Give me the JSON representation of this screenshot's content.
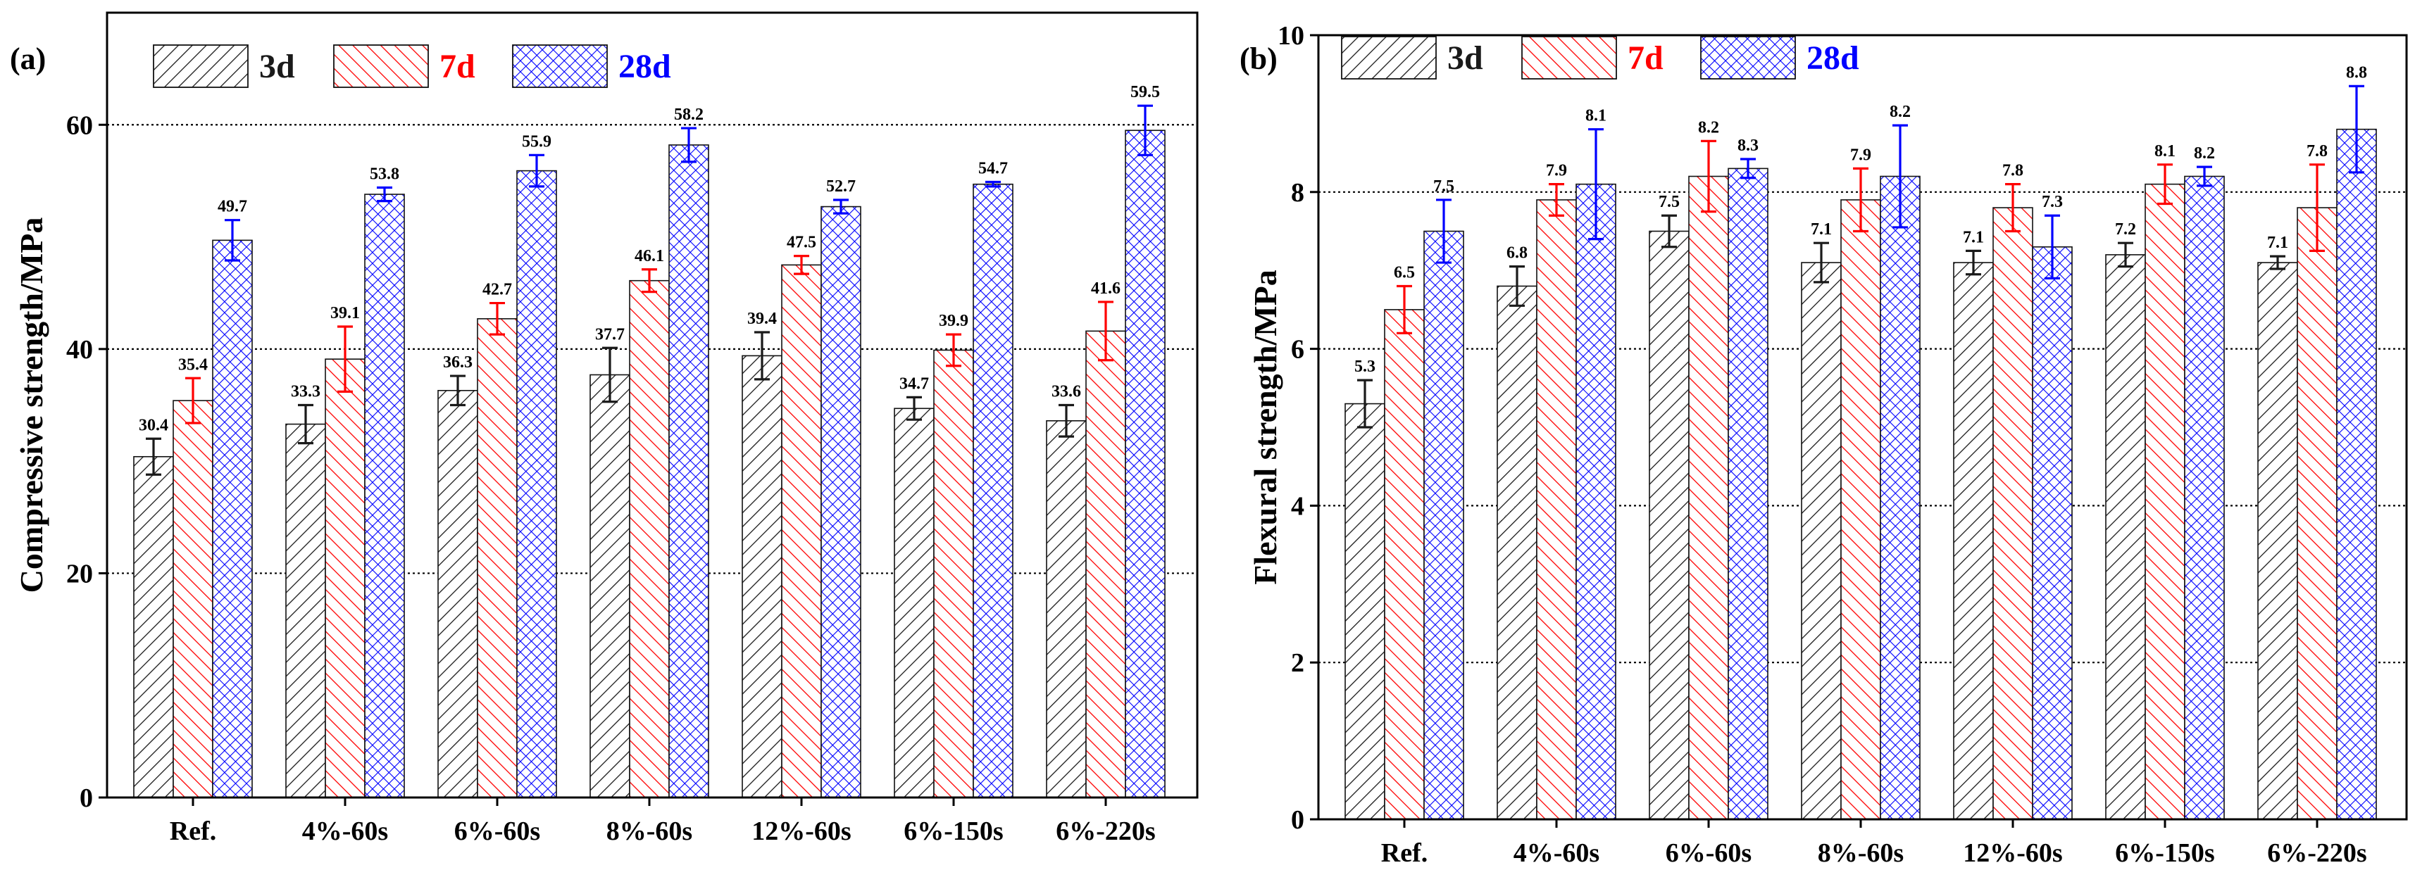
{
  "figure": {
    "legend": {
      "items": [
        {
          "label": "3d",
          "color": "#1a1a1a",
          "pattern": "hatch-black"
        },
        {
          "label": "7d",
          "color": "#ff0000",
          "pattern": "hatch-red"
        },
        {
          "label": "28d",
          "color": "#0000ff",
          "pattern": "cross-blue"
        }
      ]
    }
  },
  "chart_data": [
    {
      "panel_label": "(a)",
      "type": "bar",
      "title": "",
      "xlabel": "",
      "ylabel": "Compressive strength/MPa",
      "ylim": [
        0,
        70
      ],
      "yticks": [
        0,
        20,
        40,
        60
      ],
      "yticks_text": [
        "0",
        "20",
        "40",
        "60"
      ],
      "grid": {
        "dotted_y": [
          20,
          40,
          60
        ]
      },
      "categories": [
        "Ref.",
        "4%-60s",
        "6%-60s",
        "8%-60s",
        "12%-60s",
        "6%-150s",
        "6%-220s"
      ],
      "series": [
        {
          "name": "3d",
          "color": "#1a1a1a",
          "pattern": "hatch-black",
          "values": [
            30.4,
            33.3,
            36.3,
            37.7,
            39.4,
            34.7,
            33.6
          ],
          "labels": [
            "30.4",
            "33.3",
            "36.3",
            "37.7",
            "39.4",
            "34.7",
            "33.6"
          ],
          "errors": [
            1.6,
            1.7,
            1.3,
            2.4,
            2.1,
            1.0,
            1.4
          ]
        },
        {
          "name": "7d",
          "color": "#ff0000",
          "pattern": "hatch-red",
          "values": [
            35.4,
            39.1,
            42.7,
            46.1,
            47.5,
            39.9,
            41.6
          ],
          "labels": [
            "35.4",
            "39.1",
            "42.7",
            "46.1",
            "47.5",
            "39.9",
            "41.6"
          ],
          "errors": [
            2.0,
            2.9,
            1.4,
            1.0,
            0.8,
            1.4,
            2.6
          ]
        },
        {
          "name": "28d",
          "color": "#0000ff",
          "pattern": "cross-blue",
          "values": [
            49.7,
            53.8,
            55.9,
            58.2,
            52.7,
            54.7,
            59.5
          ],
          "labels": [
            "49.7",
            "53.8",
            "55.9",
            "58.2",
            "52.7",
            "54.7",
            "59.5"
          ],
          "errors": [
            1.8,
            0.6,
            1.4,
            1.5,
            0.6,
            0.2,
            2.2
          ]
        }
      ]
    },
    {
      "panel_label": "(b)",
      "type": "bar",
      "title": "",
      "xlabel": "",
      "ylabel": "Flexural strength/MPa",
      "ylim": [
        0,
        10
      ],
      "yticks": [
        0,
        2,
        4,
        6,
        8,
        10
      ],
      "yticks_text": [
        "0",
        "2",
        "4",
        "6",
        "8",
        "10"
      ],
      "grid": {
        "dotted_y": [
          2,
          4,
          6,
          8
        ]
      },
      "categories": [
        "Ref.",
        "4%-60s",
        "6%-60s",
        "8%-60s",
        "12%-60s",
        "6%-150s",
        "6%-220s"
      ],
      "series": [
        {
          "name": "3d",
          "color": "#1a1a1a",
          "pattern": "hatch-black",
          "values": [
            5.3,
            6.8,
            7.5,
            7.1,
            7.1,
            7.2,
            7.1
          ],
          "labels": [
            "5.3",
            "6.8",
            "7.5",
            "7.1",
            "7.1",
            "7.2",
            "7.1"
          ],
          "errors": [
            0.3,
            0.25,
            0.2,
            0.25,
            0.15,
            0.15,
            0.08
          ]
        },
        {
          "name": "7d",
          "color": "#ff0000",
          "pattern": "hatch-red",
          "values": [
            6.5,
            7.9,
            8.2,
            7.9,
            7.8,
            8.1,
            7.8
          ],
          "labels": [
            "6.5",
            "7.9",
            "8.2",
            "7.9",
            "7.8",
            "8.1",
            "7.8"
          ],
          "errors": [
            0.3,
            0.2,
            0.45,
            0.4,
            0.3,
            0.25,
            0.55
          ]
        },
        {
          "name": "28d",
          "color": "#0000ff",
          "pattern": "cross-blue",
          "values": [
            7.5,
            8.1,
            8.3,
            8.2,
            7.3,
            8.2,
            8.8
          ],
          "labels": [
            "7.5",
            "8.1",
            "8.3",
            "8.2",
            "7.3",
            "8.2",
            "8.8"
          ],
          "errors": [
            0.4,
            0.7,
            0.12,
            0.65,
            0.4,
            0.12,
            0.55
          ]
        }
      ]
    }
  ]
}
